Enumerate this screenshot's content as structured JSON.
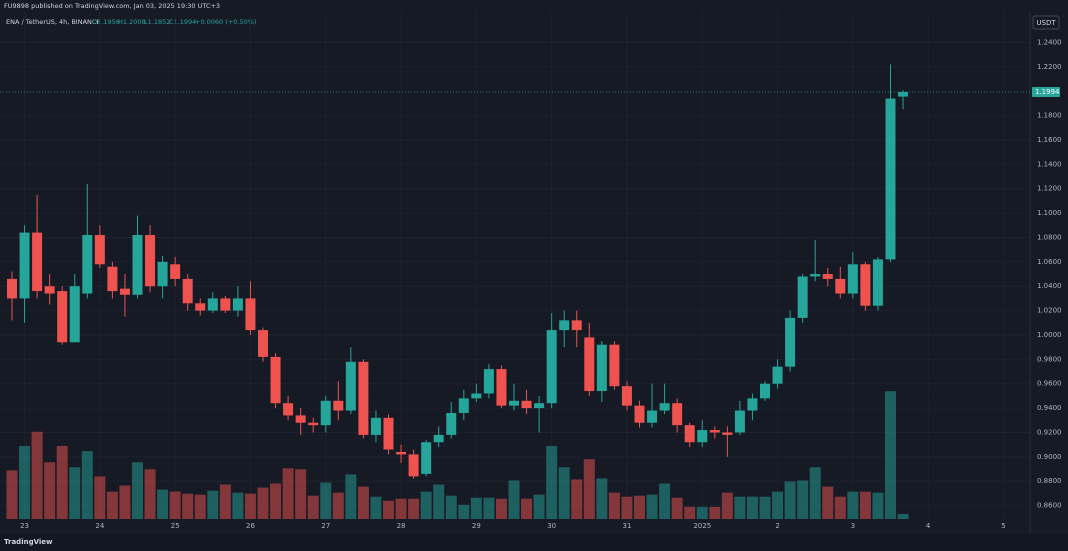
{
  "header": {
    "published": "FU9898 published on TradingView.com, Jan 03, 2025 19:30 UTC+3",
    "symbol": "ENA / TetherUS, 4h, BINANCE",
    "ohlc": [
      "O1.1956",
      "H1.2008",
      "L1.1852",
      "C1.1994"
    ],
    "change": "+0.0060 (+0.50%)"
  },
  "footer": {
    "brand": "TradingView"
  },
  "chart_data": {
    "type": "candlestick",
    "currency": "USDT",
    "categories": [
      null,
      "23",
      null,
      null,
      null,
      null,
      null,
      "24",
      null,
      null,
      null,
      null,
      null,
      "25",
      null,
      null,
      null,
      null,
      null,
      "26",
      null,
      null,
      null,
      null,
      null,
      "27",
      null,
      null,
      null,
      null,
      null,
      "28",
      null,
      null,
      null,
      null,
      null,
      "29",
      null,
      null,
      null,
      null,
      null,
      "30",
      null,
      null,
      null,
      null,
      null,
      "31",
      null,
      null,
      null,
      null,
      null,
      "2025",
      null,
      null,
      null,
      null,
      null,
      "2",
      null,
      null,
      null,
      null,
      null,
      "3",
      null,
      null,
      null,
      null,
      null,
      "4",
      null,
      null,
      null,
      null,
      null,
      "5"
    ],
    "open": [
      1.046,
      1.03,
      1.084,
      1.04,
      1.036,
      0.994,
      1.034,
      1.082,
      1.056,
      1.038,
      1.033,
      1.082,
      1.04,
      1.058,
      1.046,
      1.026,
      1.02,
      1.03,
      1.02,
      1.03,
      1.004,
      0.982,
      0.944,
      0.934,
      0.928,
      0.926,
      0.946,
      0.938,
      0.978,
      0.918,
      0.932,
      0.904,
      0.902,
      0.886,
      0.912,
      0.918,
      0.936,
      0.948,
      0.952,
      0.972,
      0.942,
      0.946,
      0.94,
      0.944,
      1.004,
      1.012,
      0.998,
      0.954,
      0.992,
      0.958,
      0.942,
      0.928,
      0.938,
      0.944,
      0.926,
      0.912,
      0.922,
      0.92,
      0.92,
      0.938,
      0.948,
      0.96,
      0.974,
      1.014,
      1.048,
      1.05,
      1.046,
      1.034,
      1.058,
      1.024,
      1.062,
      1.1956,
      null,
      null,
      null,
      null,
      null,
      null,
      null,
      null
    ],
    "high": [
      1.052,
      1.09,
      1.115,
      1.05,
      1.04,
      1.05,
      1.124,
      1.09,
      1.06,
      1.05,
      1.098,
      1.09,
      1.065,
      1.064,
      1.05,
      1.03,
      1.035,
      1.032,
      1.04,
      1.044,
      1.006,
      0.985,
      0.95,
      0.94,
      0.932,
      0.95,
      0.962,
      0.99,
      0.98,
      0.938,
      0.935,
      0.91,
      0.906,
      0.914,
      0.925,
      0.945,
      0.955,
      0.96,
      0.976,
      0.975,
      0.96,
      0.955,
      0.95,
      1.018,
      1.02,
      1.02,
      1.01,
      0.995,
      0.995,
      0.962,
      0.946,
      0.96,
      0.96,
      0.948,
      0.928,
      0.93,
      0.925,
      0.925,
      0.946,
      0.952,
      0.962,
      0.98,
      1.02,
      1.05,
      1.078,
      1.055,
      1.056,
      1.068,
      1.06,
      1.064,
      1.222,
      1.2008,
      null,
      null,
      null,
      null,
      null,
      null,
      null,
      null
    ],
    "low": [
      1.012,
      1.01,
      1.03,
      1.025,
      0.992,
      0.994,
      1.03,
      1.055,
      1.03,
      1.015,
      1.03,
      1.035,
      1.03,
      1.04,
      1.02,
      1.016,
      1.018,
      1.018,
      1.015,
      1.0,
      0.978,
      0.94,
      0.93,
      0.918,
      0.92,
      0.92,
      0.93,
      0.935,
      0.915,
      0.912,
      0.902,
      0.895,
      0.882,
      0.884,
      0.908,
      0.915,
      0.93,
      0.945,
      0.948,
      0.94,
      0.938,
      0.935,
      0.92,
      0.94,
      0.99,
      0.99,
      0.95,
      0.945,
      0.955,
      0.938,
      0.924,
      0.924,
      0.935,
      0.92,
      0.908,
      0.908,
      0.915,
      0.9,
      0.918,
      0.93,
      0.946,
      0.956,
      0.97,
      1.01,
      1.044,
      1.04,
      1.03,
      1.03,
      1.02,
      1.02,
      1.06,
      1.1852,
      null,
      null,
      null,
      null,
      null,
      null,
      null,
      null
    ],
    "close": [
      1.03,
      1.084,
      1.036,
      1.034,
      0.994,
      1.04,
      1.082,
      1.058,
      1.036,
      1.033,
      1.082,
      1.04,
      1.06,
      1.046,
      1.026,
      1.02,
      1.03,
      1.02,
      1.03,
      1.004,
      0.982,
      0.944,
      0.934,
      0.928,
      0.926,
      0.946,
      0.938,
      0.978,
      0.918,
      0.932,
      0.906,
      0.902,
      0.884,
      0.912,
      0.918,
      0.936,
      0.948,
      0.952,
      0.972,
      0.942,
      0.946,
      0.94,
      0.944,
      1.004,
      1.012,
      1.004,
      0.954,
      0.992,
      0.958,
      0.942,
      0.928,
      0.938,
      0.944,
      0.926,
      0.912,
      0.922,
      0.92,
      0.918,
      0.938,
      0.948,
      0.96,
      0.974,
      1.014,
      1.048,
      1.05,
      1.046,
      1.034,
      1.058,
      1.024,
      1.062,
      1.194,
      1.1994,
      null,
      null,
      null,
      null,
      null,
      null,
      null,
      null
    ],
    "volume": [
      48,
      72,
      86,
      56,
      72,
      51,
      67,
      42,
      27,
      33,
      56,
      49,
      29,
      27,
      25,
      24,
      28,
      34,
      26,
      25,
      31,
      35,
      50,
      49,
      23,
      36,
      26,
      44,
      32,
      22,
      18,
      20,
      20,
      27,
      34,
      23,
      14,
      21,
      21,
      20,
      38,
      20,
      24,
      72,
      51,
      39,
      59,
      40,
      26,
      22,
      23,
      24,
      35,
      21,
      12,
      12,
      12,
      26,
      22,
      22,
      22,
      27,
      37,
      38,
      51,
      32,
      22,
      27,
      27,
      26,
      126,
      5,
      null,
      null,
      null,
      null,
      null,
      null,
      null,
      null
    ],
    "up_color": "#26a69a",
    "down_color": "#ef5350",
    "ylim": [
      0.849,
      1.265
    ],
    "volume_ylim": [
      0,
      500
    ],
    "yticks": [
      {
        "value": 0.86,
        "label": "0.8600"
      },
      {
        "value": 0.88,
        "label": "0.8800"
      },
      {
        "value": 0.9,
        "label": "0.9000"
      },
      {
        "value": 0.92,
        "label": "0.9200"
      },
      {
        "value": 0.94,
        "label": "0.9400"
      },
      {
        "value": 0.96,
        "label": "0.9600"
      },
      {
        "value": 0.98,
        "label": "0.9800"
      },
      {
        "value": 1.0,
        "label": "1.0000"
      },
      {
        "value": 1.02,
        "label": "1.0200"
      },
      {
        "value": 1.04,
        "label": "1.0400"
      },
      {
        "value": 1.06,
        "label": "1.0600"
      },
      {
        "value": 1.08,
        "label": "1.0800"
      },
      {
        "value": 1.1,
        "label": "1.1000"
      },
      {
        "value": 1.12,
        "label": "1.1200"
      },
      {
        "value": 1.14,
        "label": "1.1400"
      },
      {
        "value": 1.16,
        "label": "1.1600"
      },
      {
        "value": 1.18,
        "label": "1.1800"
      },
      {
        "value": 1.22,
        "label": "1.2200"
      },
      {
        "value": 1.24,
        "label": "1.2400"
      }
    ],
    "last_price": {
      "value": 1.1994,
      "label": "1.1994"
    },
    "grid": true
  }
}
